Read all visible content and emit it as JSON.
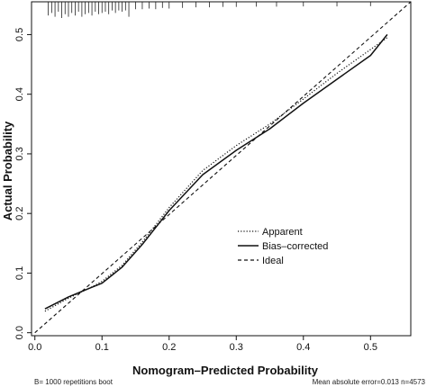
{
  "chart_data": {
    "type": "line",
    "xlabel": "Nomogram–Predicted Probability",
    "ylabel": "Actual Probability",
    "xlim": [
      -0.005,
      0.56
    ],
    "ylim": [
      -0.005,
      0.555
    ],
    "x_ticks": [
      0.0,
      0.1,
      0.2,
      0.3,
      0.4,
      0.5
    ],
    "y_ticks": [
      0.0,
      0.1,
      0.2,
      0.3,
      0.4,
      0.5
    ],
    "x_tick_labels": [
      "0.0",
      "0.1",
      "0.2",
      "0.3",
      "0.4",
      "0.5"
    ],
    "y_tick_labels": [
      "0.0",
      "0.1",
      "0.2",
      "0.3",
      "0.4",
      "0.5"
    ],
    "legend_position": "center-right",
    "series": [
      {
        "name": "Apparent",
        "style": "dotted",
        "points": [
          [
            0.015,
            0.036
          ],
          [
            0.05,
            0.058
          ],
          [
            0.08,
            0.074
          ],
          [
            0.1,
            0.086
          ],
          [
            0.13,
            0.113
          ],
          [
            0.16,
            0.152
          ],
          [
            0.2,
            0.21
          ],
          [
            0.25,
            0.272
          ],
          [
            0.3,
            0.314
          ],
          [
            0.35,
            0.35
          ],
          [
            0.4,
            0.392
          ],
          [
            0.45,
            0.435
          ],
          [
            0.5,
            0.475
          ],
          [
            0.525,
            0.495
          ]
        ]
      },
      {
        "name": "Bias–corrected",
        "style": "solid",
        "points": [
          [
            0.015,
            0.04
          ],
          [
            0.05,
            0.06
          ],
          [
            0.08,
            0.074
          ],
          [
            0.1,
            0.083
          ],
          [
            0.13,
            0.11
          ],
          [
            0.16,
            0.148
          ],
          [
            0.2,
            0.205
          ],
          [
            0.25,
            0.265
          ],
          [
            0.3,
            0.306
          ],
          [
            0.35,
            0.342
          ],
          [
            0.4,
            0.385
          ],
          [
            0.45,
            0.425
          ],
          [
            0.5,
            0.465
          ],
          [
            0.525,
            0.5
          ]
        ]
      },
      {
        "name": "Ideal",
        "style": "dashed",
        "points": [
          [
            0.0,
            0.0
          ],
          [
            0.56,
            0.56
          ]
        ]
      }
    ],
    "rug_x": [
      0.02,
      0.025,
      0.03,
      0.035,
      0.04,
      0.045,
      0.05,
      0.055,
      0.06,
      0.065,
      0.07,
      0.075,
      0.08,
      0.085,
      0.09,
      0.095,
      0.1,
      0.105,
      0.11,
      0.115,
      0.12,
      0.125,
      0.13,
      0.135,
      0.14,
      0.15,
      0.16,
      0.17,
      0.18,
      0.19,
      0.2,
      0.22,
      0.24,
      0.26,
      0.28,
      0.3,
      0.33,
      0.36,
      0.4,
      0.45,
      0.5
    ],
    "rug_heights": [
      0.8,
      0.6,
      0.9,
      0.5,
      1.0,
      0.7,
      0.9,
      0.6,
      0.8,
      0.5,
      0.9,
      0.7,
      0.6,
      0.8,
      0.5,
      0.7,
      0.6,
      0.5,
      0.7,
      0.4,
      0.6,
      0.4,
      0.5,
      0.4,
      0.9,
      0.3,
      0.3,
      0.25,
      0.3,
      0.2,
      0.25,
      0.2,
      0.15,
      0.15,
      0.12,
      0.12,
      0.1,
      0.1,
      0.08,
      0.08,
      0.06
    ]
  },
  "footer": {
    "left": "B= 1000 repetitions boot",
    "right": "Mean absolute error=0.013 n=4573"
  },
  "colors": {
    "ink": "#111111",
    "background": "#ffffff"
  }
}
